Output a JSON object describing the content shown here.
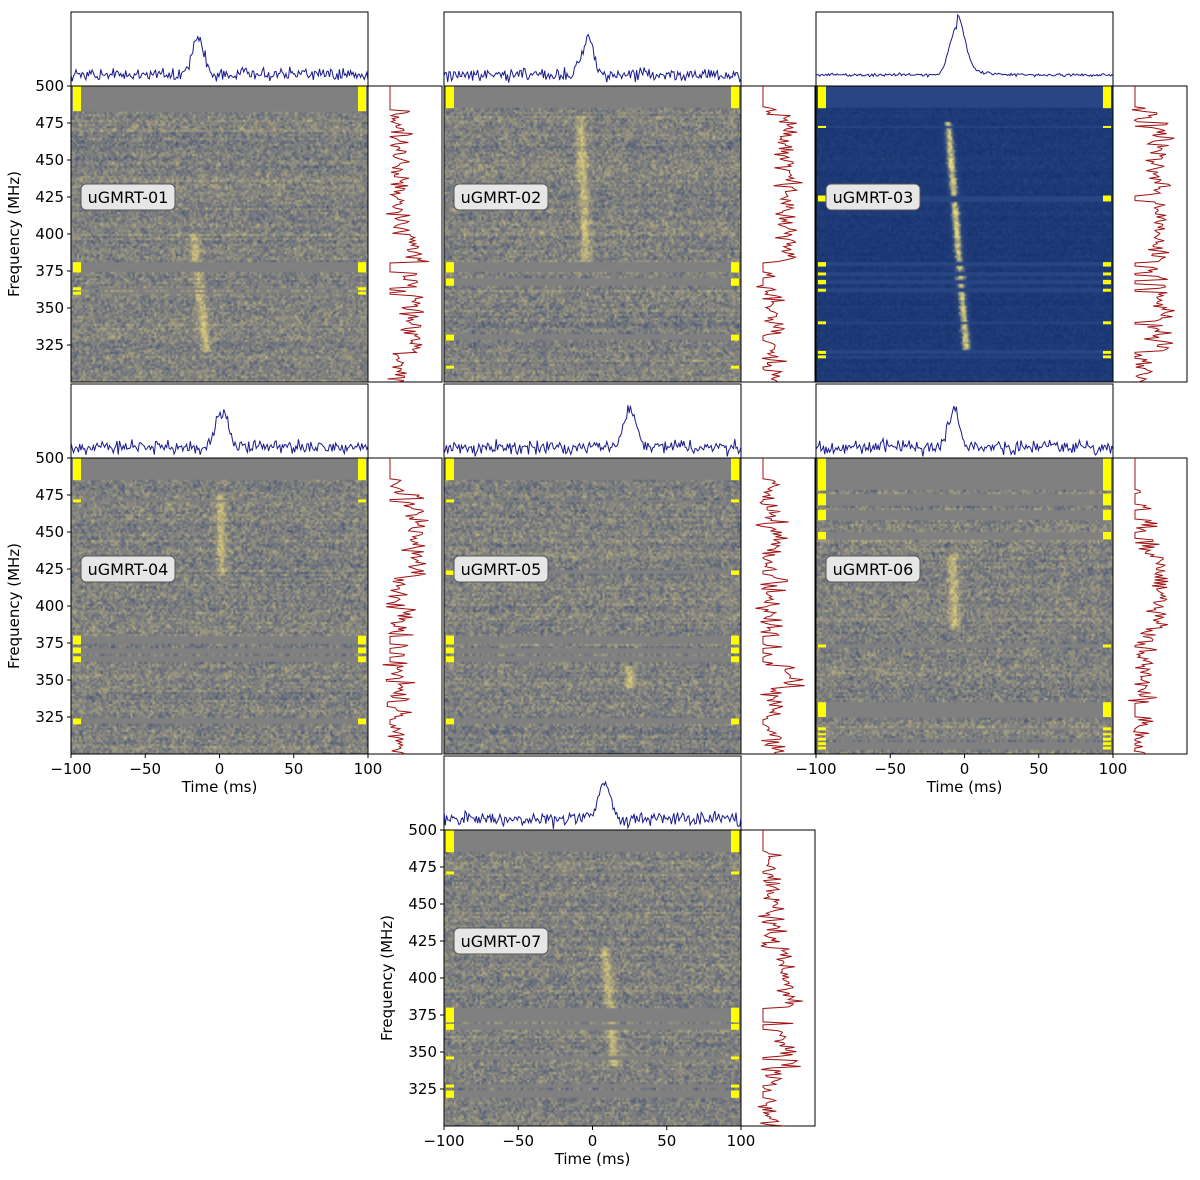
{
  "chart_data": {
    "type": "heatmap",
    "description": "Dynamic spectra of seven uGMRT bursts with frequency-averaged time profiles (top) and time-averaged spectra (right)",
    "xlabel": "Time (ms)",
    "ylabel": "Frequency (MHz)",
    "xlim": [
      -100,
      100
    ],
    "ylim": [
      300,
      500
    ],
    "xticks": [
      "−100",
      "−50",
      "0",
      "50",
      "100"
    ],
    "yticks": [
      "500",
      "475",
      "450",
      "425",
      "400",
      "375",
      "350",
      "325"
    ],
    "xtick_values": [
      -100,
      -50,
      0,
      50,
      100
    ],
    "ytick_values": [
      500,
      475,
      450,
      425,
      400,
      375,
      350,
      325
    ],
    "colors": {
      "profile_line": "#1a1a8c",
      "spectrum_line": "#a01010",
      "mask_marker": "#ffff00",
      "colormap_low": "#1f3a73",
      "colormap_mid": "#808080",
      "colormap_high": "#e8d77a"
    },
    "panels": [
      {
        "label": "uGMRT-01",
        "burst_time_ms": -18,
        "drift_ms_per_100MHz": 12,
        "burst_freq_range": [
          320,
          400
        ],
        "peak_profile_time_ms": -15,
        "masked_bands_MHz": [
          [
            483,
            500
          ],
          [
            374,
            381
          ],
          [
            362,
            364
          ],
          [
            359,
            361
          ]
        ],
        "scale": "cividis"
      },
      {
        "label": "uGMRT-02",
        "burst_time_ms": -5,
        "drift_ms_per_100MHz": 4,
        "burst_freq_range": [
          380,
          480
        ],
        "peak_profile_time_ms": -3,
        "masked_bands_MHz": [
          [
            485,
            500
          ],
          [
            374,
            381
          ],
          [
            365,
            370
          ],
          [
            328,
            332
          ],
          [
            309,
            311
          ]
        ],
        "scale": "cividis"
      },
      {
        "label": "uGMRT-03",
        "burst_time_ms": -5,
        "drift_ms_per_100MHz": 8,
        "burst_freq_range": [
          320,
          475
        ],
        "peak_profile_time_ms": -5,
        "masked_bands_MHz": [
          [
            485,
            500
          ],
          [
            472,
            473
          ],
          [
            422,
            426
          ],
          [
            378,
            381
          ],
          [
            372,
            374
          ],
          [
            366,
            369
          ],
          [
            361,
            363
          ],
          [
            339,
            341
          ],
          [
            319,
            321
          ],
          [
            316,
            318
          ]
        ],
        "scale": "deep"
      },
      {
        "label": "uGMRT-04",
        "burst_time_ms": 2,
        "drift_ms_per_100MHz": 2,
        "burst_freq_range": [
          420,
          475
        ],
        "peak_profile_time_ms": 2,
        "masked_bands_MHz": [
          [
            485,
            500
          ],
          [
            470,
            472
          ],
          [
            374,
            380
          ],
          [
            368,
            372
          ],
          [
            362,
            366
          ],
          [
            320,
            324
          ]
        ],
        "scale": "cividis"
      },
      {
        "label": "uGMRT-05",
        "burst_time_ms": 25,
        "drift_ms_per_100MHz": 0,
        "burst_freq_range": [
          345,
          360
        ],
        "peak_profile_time_ms": 25,
        "masked_bands_MHz": [
          [
            485,
            500
          ],
          [
            470,
            472
          ],
          [
            421,
            424
          ],
          [
            374,
            380
          ],
          [
            368,
            372
          ],
          [
            362,
            366
          ],
          [
            320,
            324
          ]
        ],
        "scale": "cividis"
      },
      {
        "label": "uGMRT-06",
        "burst_time_ms": -7,
        "drift_ms_per_100MHz": 2,
        "burst_freq_range": [
          385,
          435
        ],
        "peak_profile_time_ms": -7,
        "masked_bands_MHz": [
          [
            478,
            500
          ],
          [
            468,
            476
          ],
          [
            458,
            465
          ],
          [
            445,
            450
          ],
          [
            372,
            374
          ],
          [
            325,
            335
          ],
          [
            316,
            318
          ],
          [
            313,
            314
          ],
          [
            309,
            311
          ],
          [
            306,
            308
          ],
          [
            303,
            305
          ]
        ],
        "scale": "cividis"
      },
      {
        "label": "uGMRT-07",
        "burst_time_ms": 10,
        "drift_ms_per_100MHz": 8,
        "burst_freq_range": [
          340,
          420
        ],
        "peak_profile_time_ms": 8,
        "masked_bands_MHz": [
          [
            485,
            500
          ],
          [
            470,
            472
          ],
          [
            370,
            380
          ],
          [
            365,
            369
          ],
          [
            345,
            347
          ],
          [
            326,
            328
          ],
          [
            319,
            324
          ]
        ],
        "scale": "cividis"
      }
    ]
  }
}
